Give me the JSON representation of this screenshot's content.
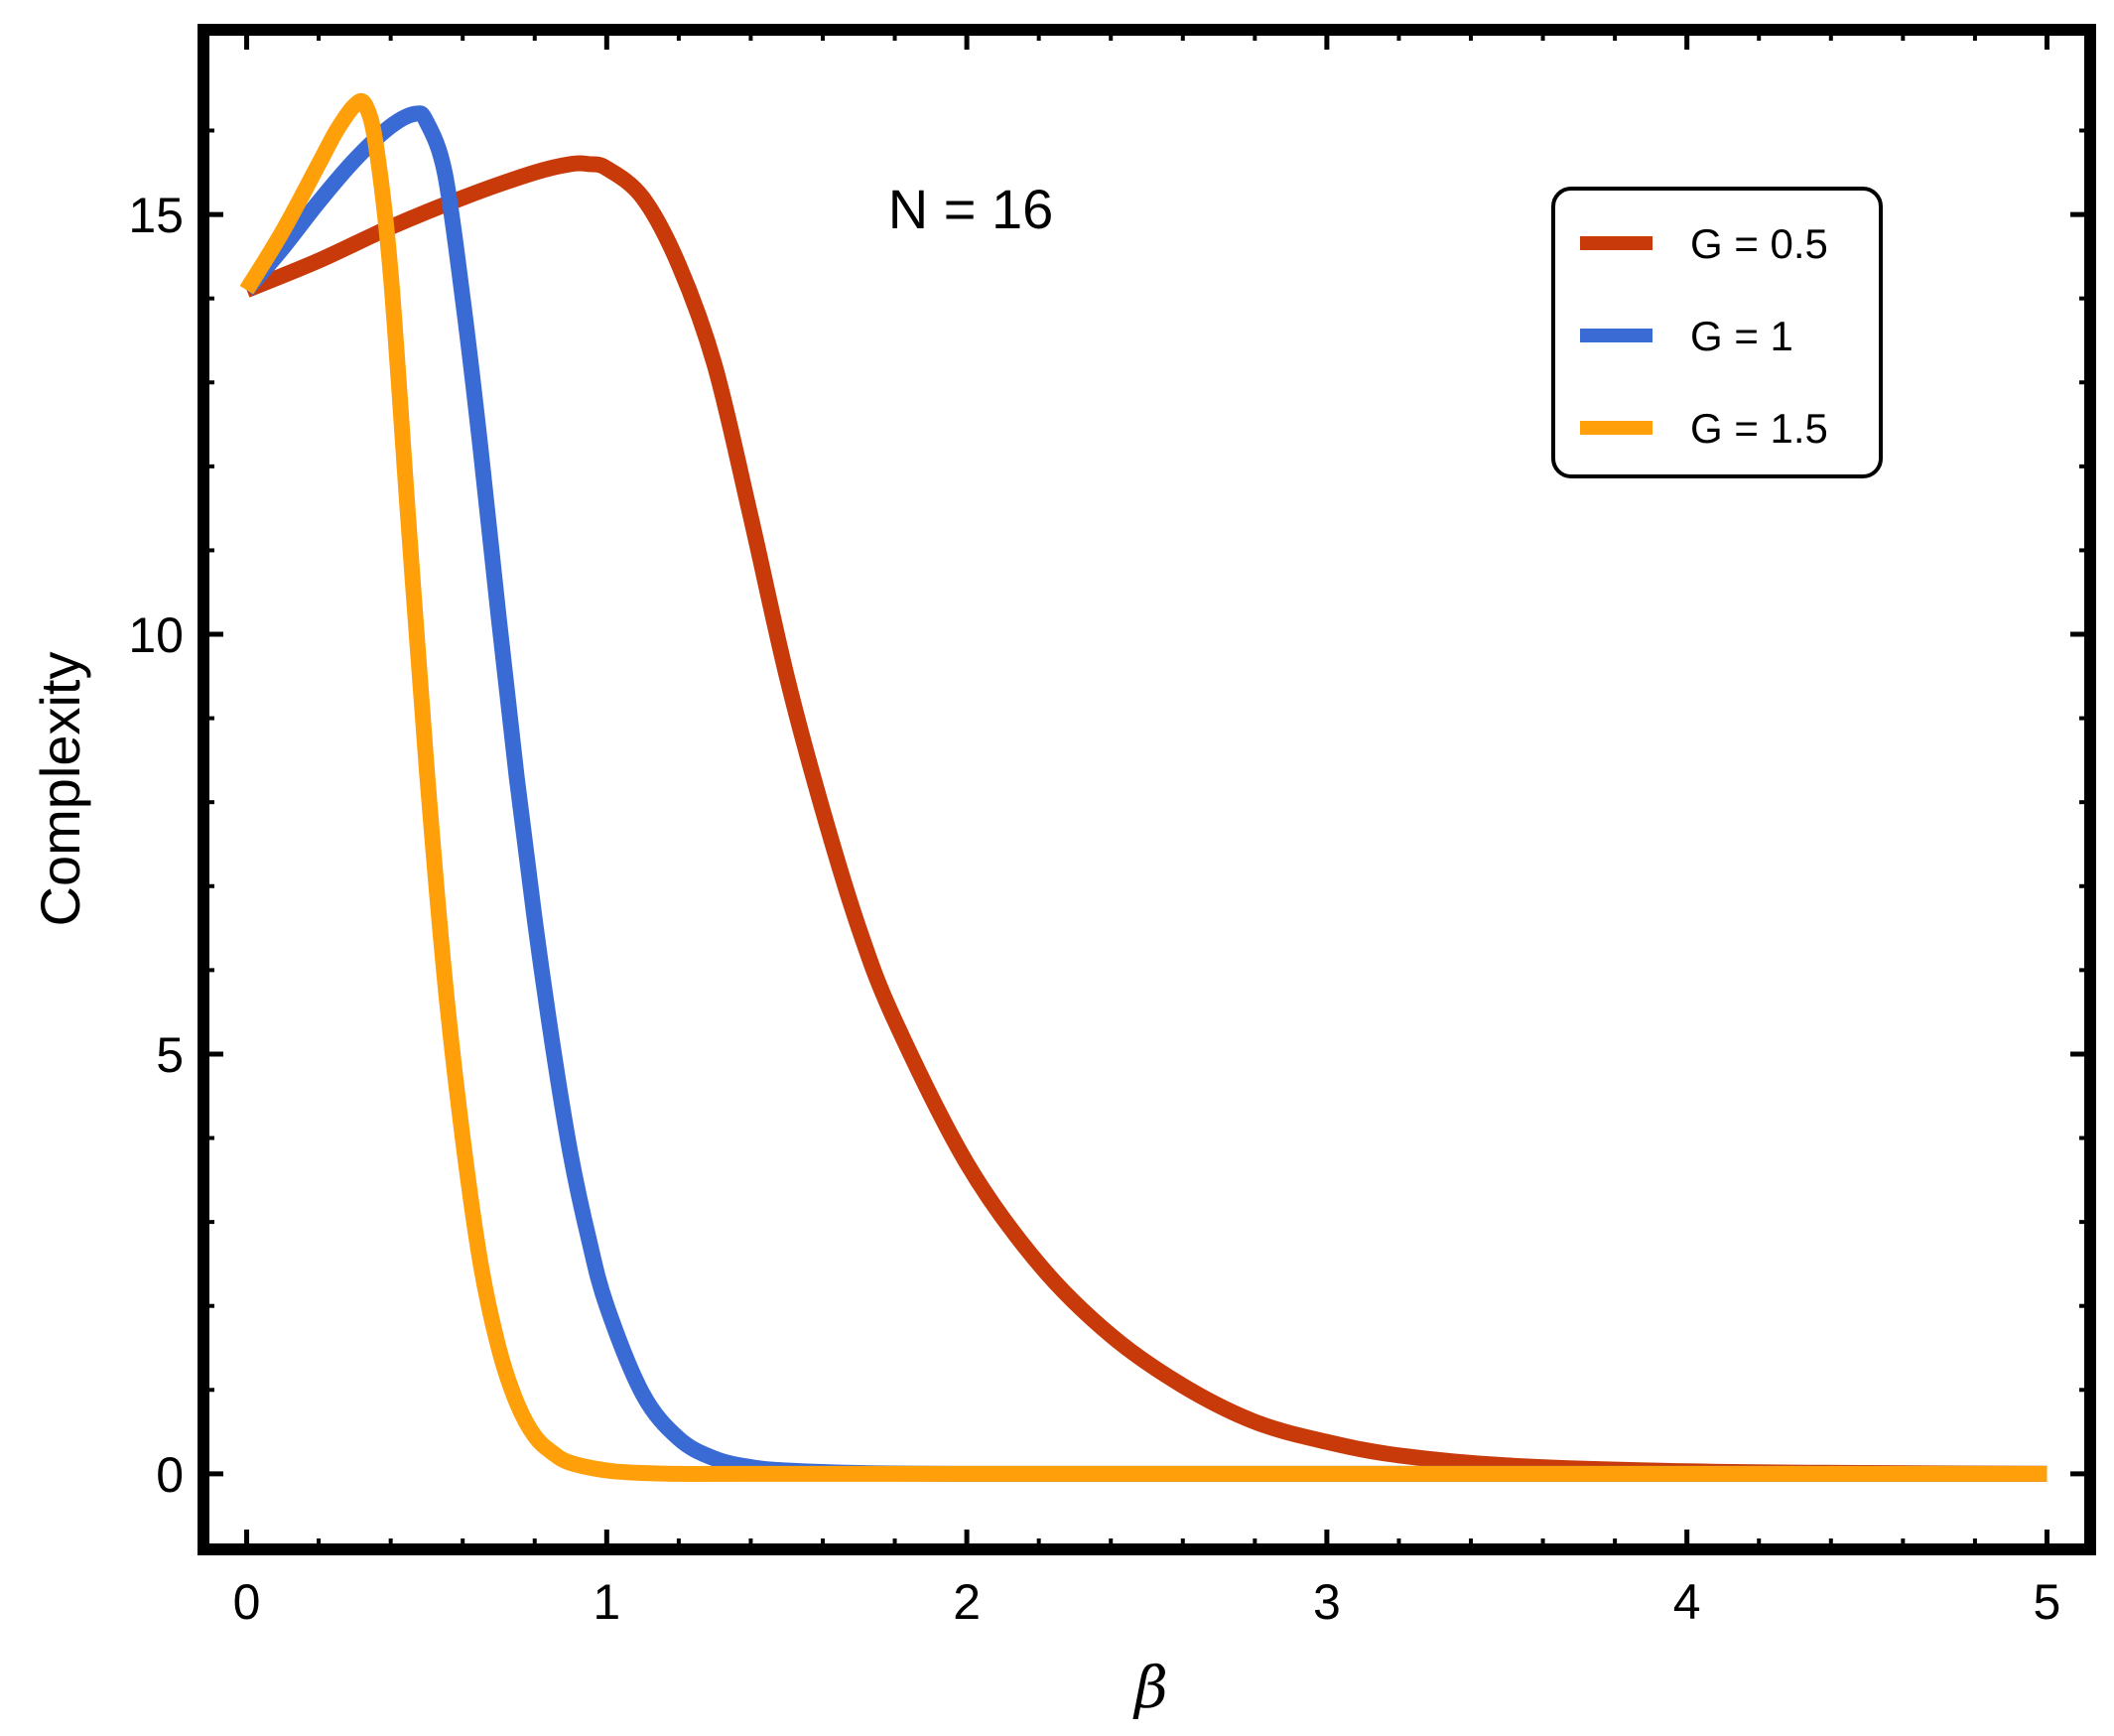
{
  "chart_data": {
    "type": "line",
    "title": "",
    "xlabel": "β",
    "ylabel": "Complexity",
    "xlim": [
      -0.12,
      5.12
    ],
    "ylim": [
      -0.9,
      17.2
    ],
    "xticks": [
      0,
      1,
      2,
      3,
      4,
      5
    ],
    "yticks": [
      0,
      5,
      10,
      15
    ],
    "x_minor_ticks": [
      0.2,
      0.4,
      0.6,
      0.8,
      1.2,
      1.4,
      1.6,
      1.8,
      2.2,
      2.4,
      2.6,
      2.8,
      3.2,
      3.4,
      3.6,
      3.8,
      4.2,
      4.4,
      4.6,
      4.8
    ],
    "y_minor_ticks": [
      1,
      2,
      3,
      4,
      6,
      7,
      8,
      9,
      11,
      12,
      13,
      14,
      16
    ],
    "annotation": "N = 16",
    "grid": false,
    "legend_position": "top-right",
    "series": [
      {
        "name": "G = 0.5",
        "color": "#C83A0A",
        "x": [
          0,
          0.2,
          0.4,
          0.6,
          0.8,
          0.9,
          0.95,
          1.0,
          1.1,
          1.2,
          1.3,
          1.4,
          1.5,
          1.6,
          1.7,
          1.8,
          2.0,
          2.2,
          2.4,
          2.6,
          2.8,
          3.0,
          3.2,
          3.5,
          4.0,
          4.5,
          5.0
        ],
        "y": [
          14.1,
          14.45,
          14.85,
          15.2,
          15.5,
          15.6,
          15.6,
          15.55,
          15.2,
          14.4,
          13.2,
          11.4,
          9.5,
          7.9,
          6.5,
          5.4,
          3.7,
          2.5,
          1.65,
          1.05,
          0.62,
          0.38,
          0.22,
          0.1,
          0.03,
          0.01,
          0.0
        ]
      },
      {
        "name": "G = 1",
        "color": "#3A6BD4",
        "x": [
          0,
          0.1,
          0.2,
          0.3,
          0.4,
          0.47,
          0.5,
          0.55,
          0.6,
          0.65,
          0.7,
          0.75,
          0.8,
          0.85,
          0.9,
          0.95,
          1.0,
          1.1,
          1.2,
          1.3,
          1.4,
          1.5,
          1.7,
          2.0,
          3.0,
          5.0
        ],
        "y": [
          14.1,
          14.6,
          15.15,
          15.65,
          16.05,
          16.2,
          16.1,
          15.5,
          14.0,
          12.2,
          10.2,
          8.3,
          6.6,
          5.1,
          3.8,
          2.8,
          2.0,
          0.95,
          0.42,
          0.18,
          0.08,
          0.04,
          0.01,
          0.0,
          0.0,
          0.0
        ]
      },
      {
        "name": "G = 1.5",
        "color": "#FF9F0A",
        "x": [
          0,
          0.1,
          0.2,
          0.25,
          0.3,
          0.33,
          0.36,
          0.4,
          0.45,
          0.5,
          0.55,
          0.6,
          0.65,
          0.7,
          0.75,
          0.8,
          0.85,
          0.9,
          1.0,
          1.1,
          1.2,
          1.4,
          2.0,
          3.0,
          5.0
        ],
        "y": [
          14.1,
          14.8,
          15.6,
          16.0,
          16.3,
          16.3,
          15.8,
          14.3,
          11.3,
          8.4,
          5.9,
          4.0,
          2.5,
          1.5,
          0.85,
          0.45,
          0.25,
          0.13,
          0.04,
          0.01,
          0.0,
          0.0,
          0.0,
          0.0,
          0.0
        ]
      }
    ]
  }
}
